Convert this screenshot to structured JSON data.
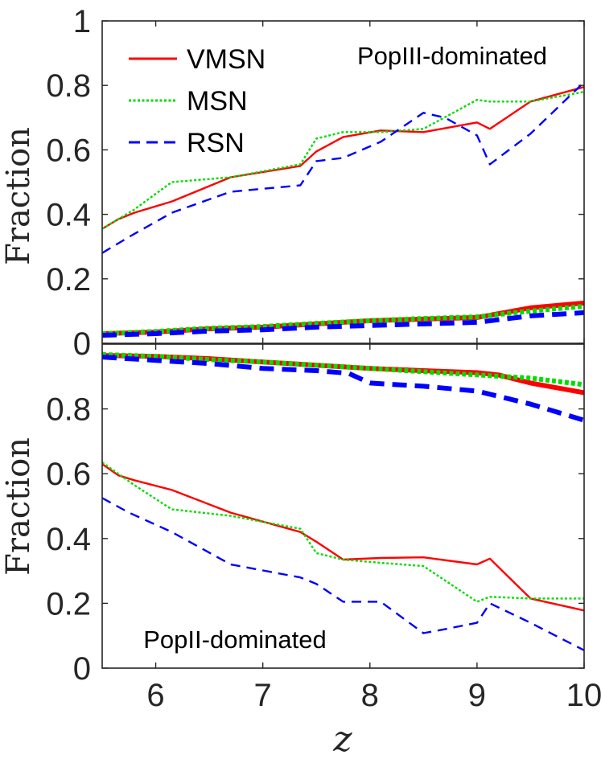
{
  "chart_data": [
    {
      "type": "line",
      "panel": "top",
      "annotation": "PopIII-dominated",
      "xlabel": "",
      "ylabel": "Fraction",
      "xlim": [
        5.5,
        10
      ],
      "ylim": [
        0,
        1
      ],
      "xticks": [
        6,
        7,
        8,
        9,
        10
      ],
      "yticks": [
        0,
        0.2,
        0.4,
        0.6,
        0.8,
        1
      ],
      "ytick_labels": [
        "0",
        "0.2",
        "0.4",
        "0.6",
        "0.8",
        "1"
      ],
      "legend": {
        "position": "top-left",
        "entries": [
          {
            "label": "VMSN",
            "color": "#ff0000",
            "style": "solid"
          },
          {
            "label": "MSN",
            "color": "#00dd00",
            "style": "dotted"
          },
          {
            "label": "RSN",
            "color": "#0000ff",
            "style": "dashed"
          }
        ]
      },
      "series": [
        {
          "name": "VMSN",
          "color": "#ff0000",
          "style": "solid",
          "weight": "thin",
          "x": [
            5.5,
            5.65,
            5.8,
            6.15,
            6.7,
            7.35,
            7.5,
            7.75,
            8.1,
            8.5,
            9.0,
            9.12,
            9.5,
            10.0
          ],
          "y": [
            0.355,
            0.385,
            0.405,
            0.44,
            0.515,
            0.55,
            0.595,
            0.64,
            0.66,
            0.655,
            0.685,
            0.665,
            0.75,
            0.795
          ]
        },
        {
          "name": "MSN",
          "color": "#00dd00",
          "style": "dotted",
          "weight": "thin",
          "x": [
            5.5,
            5.8,
            6.15,
            6.7,
            7.35,
            7.5,
            7.75,
            8.1,
            8.5,
            9.0,
            9.12,
            9.5,
            10.0
          ],
          "y": [
            0.355,
            0.415,
            0.5,
            0.515,
            0.555,
            0.635,
            0.655,
            0.655,
            0.665,
            0.755,
            0.75,
            0.75,
            0.78
          ]
        },
        {
          "name": "RSN",
          "color": "#0000ff",
          "style": "dashed",
          "weight": "thin",
          "x": [
            5.5,
            5.75,
            6.15,
            6.7,
            7.35,
            7.5,
            7.75,
            8.1,
            8.5,
            8.7,
            9.0,
            9.12,
            9.5,
            10.0
          ],
          "y": [
            0.28,
            0.33,
            0.405,
            0.47,
            0.49,
            0.565,
            0.575,
            0.625,
            0.715,
            0.7,
            0.645,
            0.555,
            0.65,
            0.81
          ]
        },
        {
          "name": "VMSN (thick)",
          "color": "#ff0000",
          "style": "solid",
          "weight": "thick",
          "x": [
            5.5,
            6.0,
            6.5,
            7.0,
            7.5,
            8.0,
            8.5,
            9.0,
            9.5,
            10.0
          ],
          "y": [
            0.03,
            0.035,
            0.045,
            0.05,
            0.06,
            0.07,
            0.075,
            0.08,
            0.11,
            0.125
          ]
        },
        {
          "name": "MSN (thick)",
          "color": "#00dd00",
          "style": "dotted",
          "weight": "thick",
          "x": [
            5.5,
            6.0,
            6.5,
            7.0,
            7.5,
            8.0,
            8.5,
            9.0,
            9.5,
            10.0
          ],
          "y": [
            0.03,
            0.037,
            0.047,
            0.052,
            0.062,
            0.07,
            0.077,
            0.082,
            0.1,
            0.115
          ]
        },
        {
          "name": "RSN (thick)",
          "color": "#0000ff",
          "style": "dashed",
          "weight": "thick",
          "x": [
            5.5,
            6.0,
            6.5,
            7.0,
            7.5,
            8.0,
            8.5,
            9.0,
            9.5,
            10.0
          ],
          "y": [
            0.025,
            0.03,
            0.038,
            0.042,
            0.05,
            0.055,
            0.06,
            0.065,
            0.085,
            0.095
          ]
        }
      ]
    },
    {
      "type": "line",
      "panel": "bottom",
      "annotation": "PopII-dominated",
      "xlabel": "z",
      "ylabel": "Fraction",
      "xlim": [
        5.5,
        10
      ],
      "ylim": [
        0,
        1
      ],
      "xticks": [
        6,
        7,
        8,
        9,
        10
      ],
      "xtick_labels": [
        "6",
        "7",
        "8",
        "9",
        "10"
      ],
      "yticks": [
        0,
        0.2,
        0.4,
        0.6,
        0.8
      ],
      "ytick_labels": [
        "0",
        "0.2",
        "0.4",
        "0.6",
        "0.8"
      ],
      "series": [
        {
          "name": "VMSN",
          "color": "#ff0000",
          "style": "solid",
          "weight": "thin",
          "x": [
            5.5,
            5.65,
            5.8,
            6.15,
            6.7,
            7.35,
            7.5,
            7.75,
            8.1,
            8.5,
            9.0,
            9.12,
            9.5,
            10.0
          ],
          "y": [
            0.63,
            0.595,
            0.58,
            0.55,
            0.48,
            0.42,
            0.39,
            0.335,
            0.34,
            0.342,
            0.32,
            0.338,
            0.215,
            0.178
          ]
        },
        {
          "name": "MSN",
          "color": "#00dd00",
          "style": "dotted",
          "weight": "thin",
          "x": [
            5.5,
            5.8,
            6.15,
            6.7,
            7.35,
            7.5,
            7.75,
            8.1,
            8.5,
            9.0,
            9.12,
            9.5,
            10.0
          ],
          "y": [
            0.635,
            0.565,
            0.49,
            0.47,
            0.43,
            0.355,
            0.335,
            0.325,
            0.315,
            0.205,
            0.22,
            0.215,
            0.215
          ]
        },
        {
          "name": "RSN",
          "color": "#0000ff",
          "style": "dashed",
          "weight": "thin",
          "x": [
            5.5,
            5.75,
            6.15,
            6.7,
            7.35,
            7.5,
            7.75,
            8.1,
            8.5,
            8.7,
            9.0,
            9.12,
            9.5,
            10.0
          ],
          "y": [
            0.525,
            0.48,
            0.42,
            0.32,
            0.28,
            0.26,
            0.205,
            0.205,
            0.108,
            0.12,
            0.14,
            0.2,
            0.14,
            0.055
          ]
        },
        {
          "name": "VMSN (thick)",
          "color": "#ff0000",
          "style": "solid",
          "weight": "thick",
          "x": [
            5.5,
            6.0,
            6.5,
            7.0,
            7.5,
            8.0,
            8.5,
            9.0,
            9.2,
            9.5,
            10.0
          ],
          "y": [
            0.965,
            0.962,
            0.955,
            0.945,
            0.935,
            0.925,
            0.918,
            0.912,
            0.905,
            0.88,
            0.85
          ]
        },
        {
          "name": "MSN (thick)",
          "color": "#00dd00",
          "style": "dotted",
          "weight": "thick",
          "x": [
            5.5,
            6.0,
            6.5,
            7.0,
            7.5,
            8.0,
            8.5,
            9.0,
            9.5,
            10.0
          ],
          "y": [
            0.968,
            0.962,
            0.952,
            0.945,
            0.935,
            0.925,
            0.915,
            0.905,
            0.895,
            0.875
          ]
        },
        {
          "name": "RSN (thick)",
          "color": "#0000ff",
          "style": "dashed",
          "weight": "thick",
          "x": [
            5.5,
            6.0,
            6.5,
            7.0,
            7.5,
            7.8,
            8.0,
            8.5,
            9.0,
            9.5,
            10.0
          ],
          "y": [
            0.96,
            0.95,
            0.94,
            0.925,
            0.918,
            0.91,
            0.88,
            0.87,
            0.855,
            0.815,
            0.765
          ]
        }
      ]
    }
  ]
}
